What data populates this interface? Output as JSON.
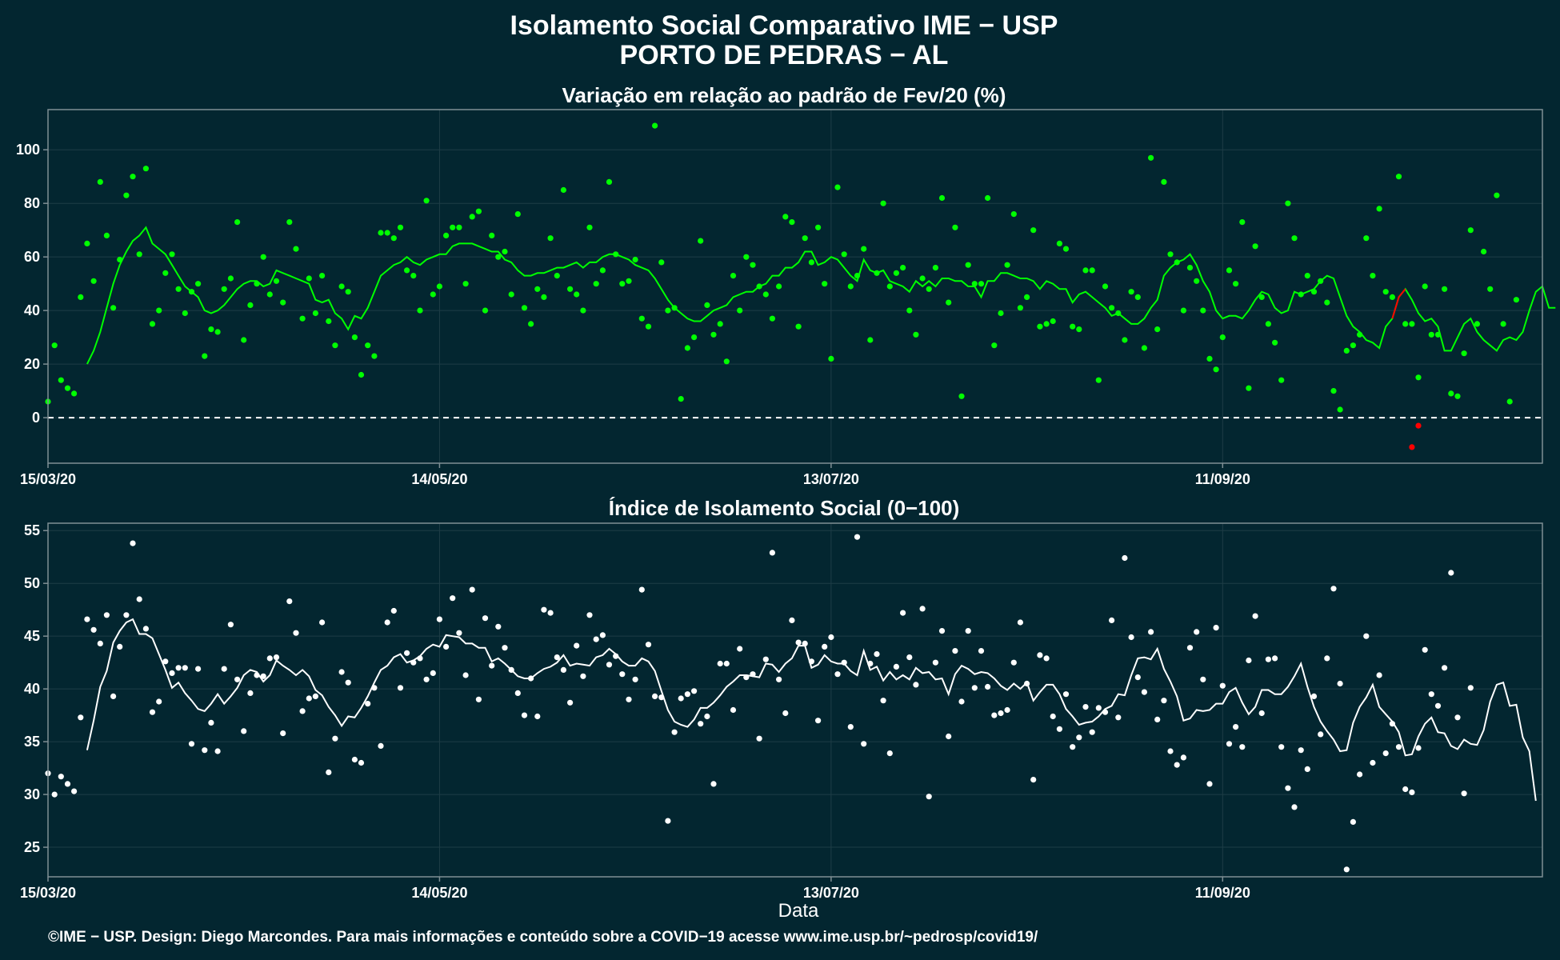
{
  "title": {
    "line1": "Isolamento Social Comparativo IME − USP",
    "line2": "PORTO DE PEDRAS − AL"
  },
  "footer": "©IME − USP. Design: Diego Marcondes. Para mais informações e conteúdo sobre a COVID−19 acesse www.ime.usp.br/~pedrosp/covid19/",
  "colors": {
    "background": "#032630",
    "panel_border": "#7f8f94",
    "top_series": "#00ff00",
    "top_negative": "#ff0000",
    "bottom_series": "#ffffff",
    "zero_line": "#ffffff"
  },
  "chart_data": [
    {
      "type": "scatter",
      "title": "Variação em relação ao padrão de Fev/20 (%)",
      "xlabel": "",
      "ylabel": "",
      "x_start": "15/03/20",
      "xticks": [
        {
          "label": "15/03/20",
          "day": 0
        },
        {
          "label": "14/05/20",
          "day": 60
        },
        {
          "label": "13/07/20",
          "day": 120
        },
        {
          "label": "11/09/20",
          "day": 180
        }
      ],
      "x_range_days": [
        0,
        229
      ],
      "ylim": [
        -17,
        115
      ],
      "yticks": [
        0,
        20,
        40,
        60,
        80,
        100
      ],
      "reference_line": {
        "y": 0,
        "style": "dashed"
      },
      "grid": true,
      "series": [
        {
          "kind": "points",
          "values": [
            6,
            27,
            14,
            11,
            9,
            45,
            65,
            51,
            88,
            68,
            41,
            59,
            83,
            90,
            61,
            93,
            35,
            40,
            54,
            61,
            48,
            39,
            47,
            50,
            23,
            33,
            32,
            48,
            52,
            73,
            29,
            42,
            50,
            60,
            46,
            51,
            43,
            73,
            63,
            37,
            52,
            39,
            53,
            36,
            27,
            49,
            47,
            30,
            16,
            27,
            23,
            69,
            69,
            67,
            71,
            55,
            53,
            40,
            81,
            46,
            49,
            68,
            71,
            71,
            50,
            75,
            77,
            40,
            68,
            60,
            62,
            46,
            76,
            41,
            35,
            48,
            45,
            67,
            53,
            85,
            48,
            46,
            40,
            71,
            50,
            55,
            88,
            61,
            50,
            51,
            59,
            37,
            34,
            109,
            58,
            40,
            41,
            7,
            26,
            30,
            66,
            42,
            31,
            35,
            21,
            53,
            40,
            60,
            57,
            49,
            46,
            37,
            49,
            75,
            73,
            34,
            67,
            58,
            71,
            50,
            22,
            86,
            61,
            49,
            53,
            63,
            29,
            54,
            80,
            49,
            54,
            56,
            40,
            31,
            52,
            48,
            56,
            82,
            43,
            71,
            8,
            57,
            50,
            50,
            82,
            27,
            39,
            57,
            76,
            41,
            45,
            70,
            34,
            35,
            36,
            65,
            63,
            34,
            33,
            55,
            55,
            14,
            49,
            41,
            39,
            29,
            47,
            45,
            26,
            97,
            33,
            88,
            61,
            58,
            40,
            56,
            51,
            40,
            22,
            18,
            30,
            55,
            50,
            73,
            11,
            64,
            45,
            35,
            28,
            14,
            80,
            67,
            46,
            53,
            47,
            51,
            43,
            10,
            3,
            25,
            27,
            31,
            67,
            53,
            78,
            47,
            45,
            90,
            35,
            35,
            15,
            49,
            31,
            31,
            48,
            9,
            8,
            24,
            70,
            35,
            62,
            48,
            83,
            35,
            6,
            44
          ],
          "negatives": [
            {
              "day": 209,
              "value": -11
            },
            {
              "day": 210,
              "value": -3
            }
          ]
        },
        {
          "kind": "moving_average",
          "values": [
            null,
            null,
            null,
            null,
            null,
            null,
            20,
            25,
            32,
            41,
            50,
            57,
            62,
            66,
            68,
            71,
            65,
            63,
            61,
            57,
            53,
            49,
            47,
            45,
            40,
            39,
            40,
            42,
            45,
            48,
            50,
            51,
            51,
            49,
            50,
            55,
            54,
            53,
            52,
            51,
            50,
            44,
            43,
            44,
            39,
            37,
            33,
            38,
            37,
            41,
            47,
            53,
            55,
            57,
            58,
            60,
            58,
            57,
            59,
            60,
            61,
            61,
            64,
            65,
            65,
            65,
            64,
            63,
            62,
            62,
            59,
            58,
            55,
            53,
            53,
            54,
            54,
            55,
            56,
            56,
            57,
            58,
            56,
            58,
            58,
            60,
            61,
            61,
            60,
            59,
            57,
            56,
            55,
            52,
            48,
            44,
            41,
            39,
            37,
            36,
            36,
            38,
            40,
            41,
            42,
            45,
            46,
            47,
            47,
            49,
            50,
            53,
            53,
            56,
            56,
            58,
            62,
            62,
            57,
            58,
            60,
            59,
            56,
            53,
            51,
            59,
            55,
            54,
            55,
            51,
            50,
            49,
            47,
            51,
            49,
            51,
            49,
            52,
            52,
            51,
            51,
            49,
            49,
            45,
            51,
            51,
            54,
            54,
            53,
            52,
            52,
            51,
            48,
            51,
            50,
            48,
            48,
            43,
            46,
            47,
            45,
            43,
            41,
            38,
            39,
            37,
            35,
            35,
            37,
            41,
            44,
            53,
            56,
            58,
            59,
            61,
            57,
            51,
            47,
            40,
            37,
            38,
            38,
            37,
            40,
            44,
            47,
            46,
            41,
            39,
            40,
            47,
            46,
            47,
            48,
            51,
            53,
            52,
            45,
            38,
            34,
            32,
            29,
            28,
            26,
            34,
            37,
            45,
            48,
            44,
            39,
            36,
            37,
            34,
            25,
            25,
            30,
            35,
            37,
            32,
            29,
            27,
            25,
            29,
            30,
            29,
            32,
            40,
            47,
            49,
            41,
            41
          ]
        }
      ]
    },
    {
      "type": "scatter",
      "title": "Índice de Isolamento Social (0−100)",
      "xlabel": "Data",
      "ylabel": "",
      "x_start": "15/03/20",
      "xticks": [
        {
          "label": "15/03/20",
          "day": 0
        },
        {
          "label": "14/05/20",
          "day": 60
        },
        {
          "label": "13/07/20",
          "day": 120
        },
        {
          "label": "11/09/20",
          "day": 180
        }
      ],
      "x_range_days": [
        0,
        229
      ],
      "ylim": [
        22.2,
        55.7
      ],
      "yticks": [
        25,
        30,
        35,
        40,
        45,
        50,
        55
      ],
      "grid": true,
      "series": [
        {
          "kind": "points",
          "values": [
            32.0,
            30.0,
            31.7,
            31.0,
            30.3,
            37.3,
            46.6,
            45.6,
            44.3,
            47.0,
            39.3,
            44.0,
            47.0,
            53.8,
            48.5,
            45.7,
            37.8,
            38.8,
            42.6,
            41.5,
            42.0,
            42.0,
            34.8,
            41.9,
            34.2,
            36.8,
            34.1,
            41.9,
            46.1,
            40.9,
            36.0,
            39.6,
            41.3,
            41.2,
            42.9,
            43.0,
            35.8,
            48.3,
            45.3,
            37.9,
            39.1,
            39.3,
            46.3,
            32.1,
            35.3,
            41.6,
            40.6,
            33.3,
            33.0,
            38.6,
            40.1,
            34.6,
            46.3,
            47.4,
            40.1,
            43.4,
            42.5,
            42.9,
            40.9,
            41.5,
            46.6,
            44.0,
            48.6,
            45.3,
            41.3,
            49.4,
            39.0,
            46.7,
            42.2,
            45.9,
            43.9,
            41.8,
            39.6,
            37.5,
            41.0,
            37.4,
            47.5,
            47.2,
            43.0,
            41.8,
            38.7,
            44.1,
            41.2,
            47.0,
            44.7,
            45.1,
            42.3,
            43.1,
            41.4,
            39.0,
            40.9,
            49.4,
            44.2,
            39.3,
            39.2,
            27.5,
            35.9,
            39.1,
            39.5,
            39.8,
            36.7,
            37.4,
            31.0,
            42.4,
            42.4,
            38.0,
            43.8,
            41.1,
            41.4,
            35.3,
            42.8,
            52.9,
            40.9,
            37.7,
            46.5,
            44.4,
            44.3,
            42.6,
            37.0,
            44.0,
            44.9,
            41.4,
            42.5,
            36.4,
            54.4,
            34.8,
            42.4,
            43.3,
            38.9,
            33.9,
            42.1,
            47.2,
            43.0,
            40.4,
            47.6,
            29.8,
            42.5,
            45.5,
            35.5,
            43.6,
            38.8,
            45.5,
            40.1,
            43.6,
            40.2,
            37.5,
            37.7,
            38.0,
            42.5,
            46.3,
            40.5,
            31.4,
            43.2,
            42.9,
            37.4,
            36.2,
            39.5,
            34.5,
            35.4,
            38.3,
            35.9,
            38.2,
            37.8,
            46.5,
            37.3,
            52.4,
            44.9,
            41.1,
            39.7,
            45.4,
            37.1,
            38.9,
            34.1,
            32.8,
            33.5,
            43.9,
            45.4,
            40.9,
            31.0,
            45.8,
            40.3,
            34.8,
            36.4,
            34.5,
            42.7,
            46.9,
            37.7,
            42.8,
            42.9,
            34.5,
            30.6,
            28.8,
            34.2,
            32.4,
            39.3,
            35.7,
            42.9,
            49.5,
            40.5,
            22.9,
            27.4,
            31.9,
            45.0,
            33.0,
            41.3,
            33.9,
            36.7,
            34.5,
            30.5,
            30.2,
            34.4,
            43.7,
            39.5,
            38.4,
            42.0,
            51.0,
            37.3,
            30.1,
            40.1
          ],
          "negatives": []
        },
        {
          "kind": "moving_average",
          "values": [
            null,
            null,
            null,
            null,
            null,
            null,
            34.2,
            37.0,
            40.2,
            41.7,
            44.4,
            45.5,
            46.3,
            46.6,
            45.2,
            45.2,
            44.8,
            43.3,
            41.8,
            40.1,
            40.6,
            39.6,
            38.9,
            38.1,
            37.9,
            38.6,
            39.5,
            38.6,
            39.3,
            40.1,
            41.3,
            41.8,
            41.6,
            40.7,
            41.3,
            42.7,
            42.2,
            41.8,
            41.3,
            41.8,
            41.2,
            39.9,
            39.4,
            38.3,
            37.5,
            36.5,
            37.4,
            37.3,
            38.2,
            39.3,
            40.6,
            41.8,
            42.2,
            43.0,
            43.3,
            42.5,
            42.7,
            43.1,
            43.8,
            44.2,
            44.0,
            45.1,
            45.0,
            44.9,
            44.3,
            44.3,
            43.9,
            43.9,
            42.6,
            42.9,
            42.4,
            41.8,
            41.2,
            41.0,
            41.0,
            41.5,
            41.9,
            42.1,
            42.5,
            43.2,
            42.2,
            42.4,
            42.3,
            42.2,
            43.0,
            43.2,
            43.8,
            43.3,
            42.6,
            42.2,
            42.2,
            42.9,
            42.6,
            41.7,
            39.8,
            38.0,
            36.9,
            36.6,
            36.4,
            37.1,
            38.2,
            38.2,
            38.7,
            39.4,
            40.2,
            40.7,
            41.3,
            41.3,
            41.2,
            41.1,
            42.4,
            42.3,
            41.6,
            42.4,
            42.9,
            44.1,
            44.1,
            42.0,
            42.3,
            43.2,
            42.6,
            42.4,
            42.4,
            41.7,
            41.3,
            43.6,
            41.8,
            42.1,
            40.8,
            41.6,
            40.9,
            41.3,
            40.9,
            42.0,
            41.5,
            41.6,
            40.9,
            41.0,
            39.5,
            41.4,
            42.2,
            41.9,
            41.4,
            41.6,
            41.5,
            41.0,
            40.3,
            39.9,
            40.5,
            40.0,
            40.6,
            38.9,
            39.7,
            40.4,
            40.4,
            39.5,
            38.1,
            37.4,
            36.6,
            36.8,
            36.9,
            37.4,
            38.1,
            38.4,
            39.5,
            39.4,
            41.3,
            42.9,
            43.0,
            42.8,
            43.8,
            41.9,
            40.7,
            39.3,
            37.0,
            37.2,
            38.0,
            37.9,
            38.0,
            38.6,
            38.6,
            39.7,
            40.1,
            38.7,
            37.6,
            38.3,
            39.9,
            39.9,
            39.5,
            39.5,
            40.2,
            41.2,
            42.4,
            40.2,
            38.3,
            36.9,
            36.0,
            35.2,
            34.1,
            34.2,
            36.8,
            38.3,
            39.2,
            40.4,
            38.3,
            37.6,
            36.9,
            35.9,
            33.7,
            33.8,
            35.5,
            36.7,
            37.3,
            35.9,
            35.8,
            34.6,
            34.3,
            35.2,
            34.8,
            34.7,
            36.1,
            38.8,
            40.4,
            40.6,
            38.4,
            38.5,
            35.4,
            34.1,
            29.4
          ]
        }
      ]
    }
  ]
}
